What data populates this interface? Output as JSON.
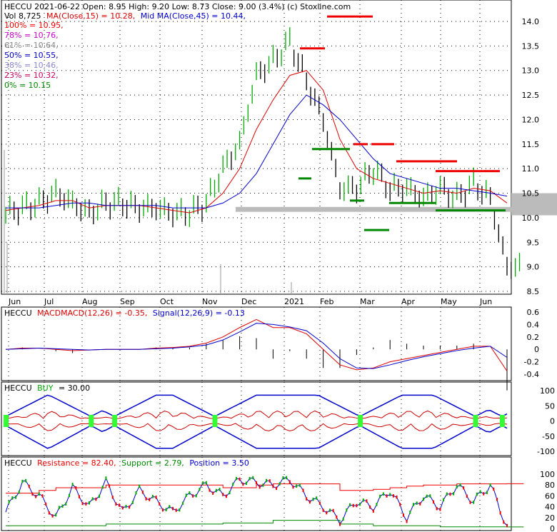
{
  "header": {
    "line1": "HECCU  2021-06-22 Open: 8.95  High: 9.20  Low: 8.73  Close: 9.00 (3.4%)  (c) Stoxline.com",
    "vol_label": "Vol 8,725",
    "ma15_label": "MA(Close,15) = 10.28,",
    "ma45_label": "Mid MA(Close,45) = 10.44,"
  },
  "fib_levels": [
    {
      "label": "100% = 10.95,",
      "color": "#ff0000"
    },
    {
      "label": "78% = 10.76,",
      "color": "#cc00cc"
    },
    {
      "label": "61% = 10.64,",
      "color": "#888888"
    },
    {
      "label": "50% = 10.55,",
      "color": "#0000cc"
    },
    {
      "label": "38% = 10.46,",
      "color": "#8888cc"
    },
    {
      "label": "23% = 10.32,",
      "color": "#cc0066"
    },
    {
      "label": "0% = 10.15",
      "color": "#008800"
    }
  ],
  "panels": {
    "macd": {
      "title": "HECCU",
      "macd_label": "MACDMACD(12,26) = -0.35,",
      "signal_label": "Signal(12,26,9) = -0.13"
    },
    "buy": {
      "title": "HECCU",
      "buy_label": "BUY",
      "value": "= 30.00"
    },
    "sr": {
      "title": "HECCU",
      "resistance_label": "Resistance = 82.40,",
      "support_label": "Support = 2.79,",
      "position_label": "Position = 3.50"
    }
  },
  "colors": {
    "up": "#00aa00",
    "down": "#000000",
    "ma15": "#dd0000",
    "ma45": "#0000cc",
    "resistance": "#ee0000",
    "support": "#008800",
    "fill": "#33ff33"
  },
  "chart_data": [
    {
      "type": "line",
      "title": "HECCU 2021-06-22",
      "x_labels": [
        "Jun",
        "Jul",
        "Aug",
        "Sep",
        "Oct",
        "Nov",
        "Dec",
        "2021",
        "Feb",
        "Mar",
        "Apr",
        "May",
        "Jun"
      ],
      "y_ticks": [
        "14.0",
        "13.5",
        "13.0",
        "12.5",
        "12.0",
        "11.5",
        "11.0",
        "10.5",
        "10.0",
        "9.5",
        "9.0",
        "8.5"
      ],
      "ylim": [
        8.5,
        14.1
      ],
      "series": [
        {
          "name": "Close",
          "values": [
            10.1,
            10.2,
            10.3,
            10.5,
            10.3,
            10.1,
            10.3,
            10.3,
            10.2,
            10.2,
            10.1,
            10.1,
            10.3,
            11.0,
            11.5,
            12.9,
            13.2,
            13.6,
            12.8,
            12.0,
            10.6,
            10.6,
            11.0,
            10.6,
            10.6,
            10.4,
            10.6,
            10.4,
            10.7,
            10.4,
            9.0
          ]
        },
        {
          "name": "MA(Close,15)",
          "values": [
            10.15,
            10.2,
            10.25,
            10.35,
            10.35,
            10.2,
            10.25,
            10.25,
            10.25,
            10.2,
            10.15,
            10.1,
            10.2,
            10.5,
            11.0,
            11.8,
            12.4,
            12.9,
            13.0,
            12.6,
            11.6,
            11.0,
            10.8,
            10.7,
            10.6,
            10.5,
            10.55,
            10.5,
            10.6,
            10.55,
            10.3
          ]
        },
        {
          "name": "Mid MA(Close,45)",
          "values": [
            10.2,
            10.2,
            10.2,
            10.25,
            10.3,
            10.3,
            10.25,
            10.25,
            10.25,
            10.25,
            10.2,
            10.2,
            10.2,
            10.3,
            10.5,
            10.9,
            11.5,
            12.1,
            12.5,
            12.3,
            12.0,
            11.6,
            11.2,
            10.9,
            10.8,
            10.7,
            10.6,
            10.6,
            10.55,
            10.5,
            10.44
          ]
        }
      ]
    },
    {
      "type": "line",
      "title": "MACD(12,26)",
      "y_ticks": [
        "0.6",
        "0.4",
        "0.2",
        "0",
        "-0.2",
        "-0.4"
      ],
      "ylim": [
        -0.45,
        0.65
      ],
      "series": [
        {
          "name": "MACD",
          "values": [
            0.0,
            0.02,
            0.02,
            0.0,
            -0.02,
            -0.01,
            0.0,
            0.0,
            0.0,
            0.02,
            0.03,
            0.05,
            0.1,
            0.2,
            0.35,
            0.48,
            0.35,
            0.35,
            0.25,
            0.0,
            -0.25,
            -0.33,
            -0.3,
            -0.2,
            -0.15,
            -0.1,
            -0.05,
            0.0,
            0.05,
            0.05,
            -0.35
          ]
        },
        {
          "name": "Signal",
          "values": [
            0.0,
            0.01,
            0.02,
            0.01,
            0.0,
            -0.01,
            0.0,
            0.0,
            0.0,
            0.01,
            0.02,
            0.04,
            0.07,
            0.15,
            0.28,
            0.42,
            0.4,
            0.36,
            0.3,
            0.1,
            -0.15,
            -0.3,
            -0.31,
            -0.25,
            -0.18,
            -0.12,
            -0.07,
            -0.02,
            0.02,
            0.05,
            -0.13
          ]
        }
      ]
    },
    {
      "type": "line",
      "title": "BUY",
      "y_ticks": [
        "100",
        "50",
        "0",
        "-50",
        "-100"
      ],
      "ylim": [
        -110,
        110
      ]
    },
    {
      "type": "line",
      "title": "Resistance / Support / Position",
      "y_ticks": [
        "100",
        "80",
        "60",
        "40",
        "20",
        "0"
      ],
      "ylim": [
        0,
        100
      ],
      "series": [
        {
          "name": "Resistance",
          "values": [
            65,
            65,
            70,
            75,
            75,
            75,
            80,
            80,
            80,
            80,
            80,
            80,
            80,
            75,
            75,
            80,
            82,
            82,
            82,
            82,
            70,
            70,
            72,
            75,
            78,
            80,
            80,
            82,
            82,
            82,
            82.4
          ]
        },
        {
          "name": "Support",
          "values": [
            5,
            5,
            5,
            5,
            5,
            5,
            8,
            8,
            8,
            8,
            8,
            8,
            8,
            10,
            10,
            10,
            15,
            15,
            15,
            15,
            8,
            8,
            5,
            5,
            5,
            5,
            3,
            3,
            3,
            3,
            2.79
          ]
        },
        {
          "name": "Position",
          "values": [
            30,
            85,
            60,
            20,
            75,
            40,
            85,
            30,
            70,
            50,
            30,
            60,
            80,
            60,
            90,
            85,
            80,
            90,
            60,
            40,
            15,
            50,
            40,
            70,
            20,
            60,
            40,
            80,
            50,
            80,
            3.5
          ]
        }
      ]
    }
  ]
}
